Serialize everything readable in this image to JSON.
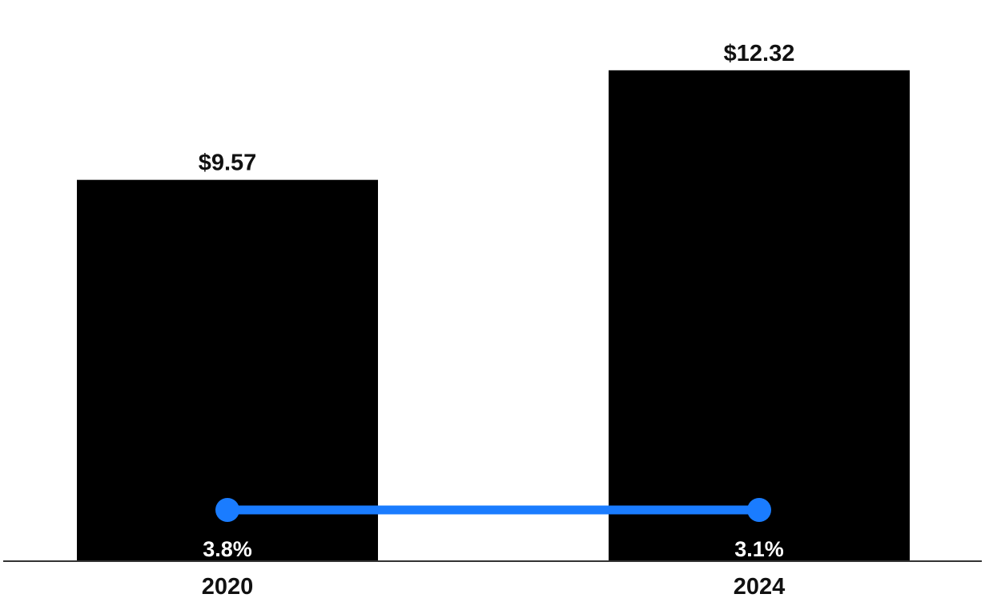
{
  "chart_data": {
    "type": "bar",
    "categories": [
      "2020",
      "2024"
    ],
    "values": [
      9.57,
      12.32
    ],
    "value_labels": [
      "$9.57",
      "$12.32"
    ],
    "line_series": {
      "values": [
        3.8,
        3.1
      ],
      "labels": [
        "3.8%",
        "3.1%"
      ]
    },
    "ylim": [
      0,
      13.2
    ],
    "grid": false,
    "colors": {
      "bar": "#000000",
      "line": "#1a7cff",
      "baseline": "#333333",
      "text": "#111111",
      "rate_text": "#ffffff"
    }
  }
}
